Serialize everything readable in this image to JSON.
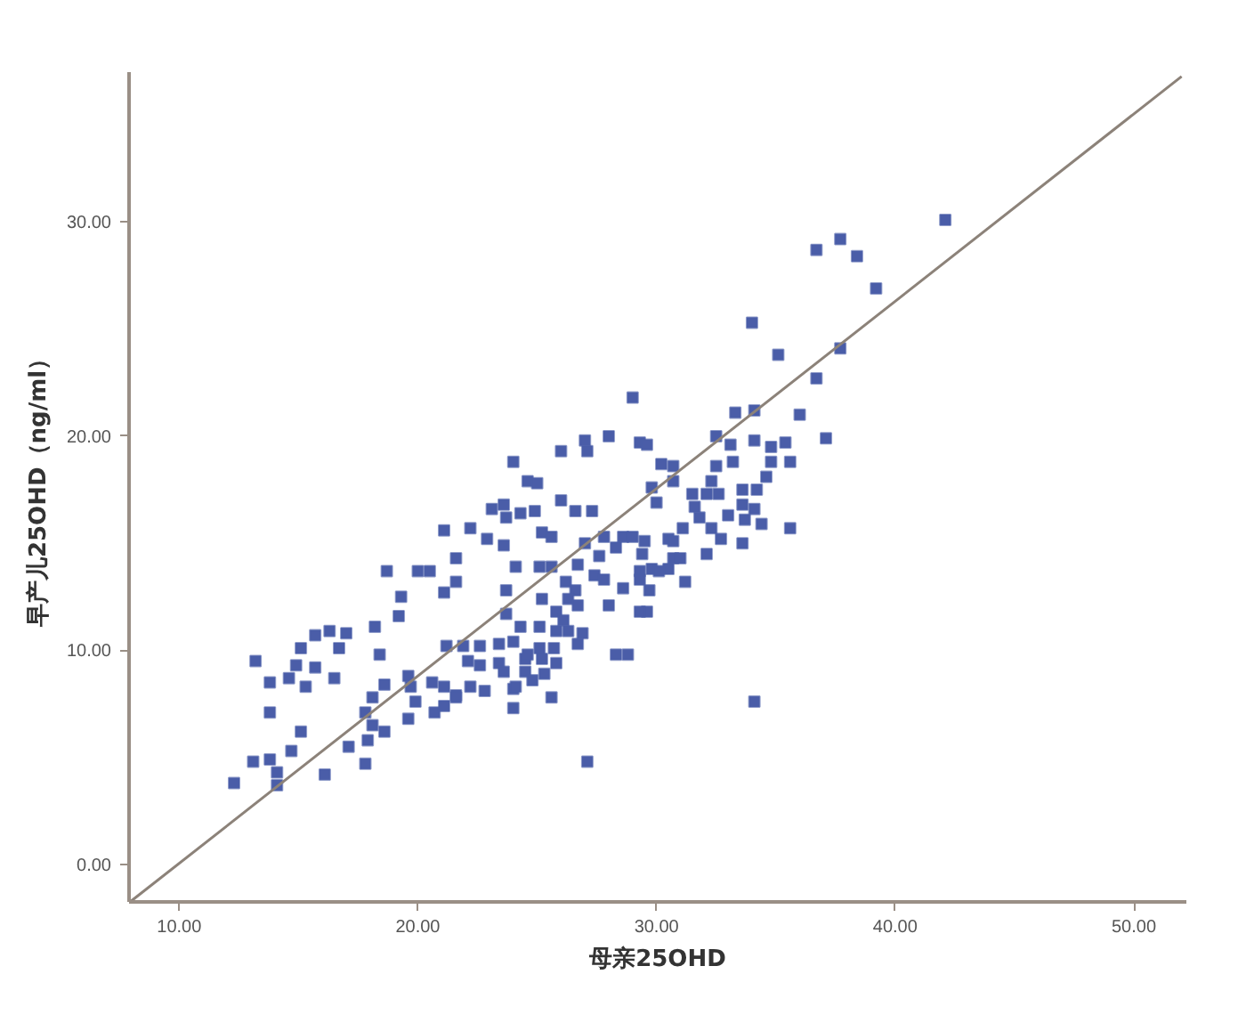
{
  "chart_data": {
    "type": "scatter",
    "xlabel": "母亲25OHD",
    "ylabel": "早产儿25OHD（ng/ml）",
    "xlim": [
      7.9,
      52.2
    ],
    "ylim": [
      -1.75,
      37.0
    ],
    "xticks": [
      {
        "value": 10,
        "label": "10.00"
      },
      {
        "value": 20,
        "label": "20.00"
      },
      {
        "value": 30,
        "label": "30.00"
      },
      {
        "value": 40,
        "label": "40.00"
      },
      {
        "value": 50,
        "label": "50.00"
      }
    ],
    "yticks": [
      {
        "value": 0,
        "label": "0.00"
      },
      {
        "value": 10,
        "label": "10.00"
      },
      {
        "value": 20,
        "label": "20.00"
      },
      {
        "value": 30,
        "label": "30.00"
      }
    ],
    "grid": false,
    "series": [
      {
        "marker": "square",
        "color": "#4a5da8",
        "x": [
          12.3,
          13.1,
          13.8,
          14.1,
          14.1,
          14.7,
          15.1,
          13.8,
          13.8,
          13.2,
          14.6,
          14.9,
          15.3,
          15.7,
          15.1,
          15.7,
          16.3,
          16.7,
          17.0,
          16.5,
          16.1,
          17.1,
          17.8,
          17.9,
          18.1,
          18.6,
          17.8,
          18.1,
          18.6,
          18.4,
          18.2,
          19.2,
          19.3,
          18.7,
          20.0,
          20.5,
          21.1,
          21.6,
          21.6,
          22.9,
          23.6,
          24.1,
          23.7,
          23.7,
          24.3,
          21.2,
          21.9,
          22.6,
          23.4,
          22.1,
          22.6,
          23.4,
          23.6,
          24.5,
          24.5,
          19.6,
          19.7,
          20.6,
          21.1,
          21.6,
          22.2,
          22.8,
          19.9,
          19.6,
          20.7,
          21.1,
          21.6,
          24.0,
          24.0,
          24.0,
          26.0,
          27.0,
          27.1,
          28.0,
          29.3,
          29.6,
          30.2,
          30.7,
          24.6,
          25.0,
          23.1,
          23.6,
          23.7,
          24.3,
          24.9,
          26.0,
          26.6,
          27.3,
          21.1,
          22.2,
          25.2,
          25.6,
          27.0,
          27.8,
          28.3,
          28.6,
          29.0,
          29.5,
          29.8,
          30.0,
          27.6,
          29.4,
          30.5,
          25.1,
          25.6,
          26.7,
          26.2,
          26.6,
          26.3,
          26.7,
          27.4,
          27.8,
          28.6,
          29.3,
          29.8,
          30.5,
          29.7,
          29.6,
          28.0,
          25.2,
          25.8,
          26.1,
          26.3,
          26.9,
          26.7,
          25.8,
          25.1,
          25.7,
          25.8,
          25.3,
          25.6,
          28.3,
          28.8,
          25.1,
          24.0,
          24.6,
          25.2,
          24.1,
          24.8,
          34.0,
          35.1,
          37.7,
          36.7,
          29.0,
          33.3,
          34.1,
          36.0,
          37.1,
          32.5,
          33.1,
          34.1,
          34.8,
          35.4,
          34.8,
          35.6,
          33.2,
          30.7,
          32.5,
          32.3,
          34.6,
          31.5,
          32.1,
          32.6,
          33.6,
          34.2,
          31.6,
          33.6,
          34.1,
          31.8,
          33.0,
          33.7,
          34.4,
          35.6,
          31.1,
          32.3,
          32.7,
          33.6,
          32.1,
          30.7,
          30.7,
          31.0,
          30.1,
          31.2,
          29.3,
          29.3,
          42.1,
          36.7,
          37.7,
          38.4,
          39.2,
          34.1,
          27.1
        ],
        "values": [
          3.8,
          4.8,
          4.9,
          4.3,
          3.7,
          5.3,
          6.2,
          7.1,
          8.5,
          9.5,
          8.7,
          9.3,
          8.3,
          9.2,
          10.1,
          10.7,
          10.9,
          10.1,
          10.8,
          8.7,
          4.2,
          5.5,
          4.7,
          5.8,
          6.5,
          6.2,
          7.1,
          7.8,
          8.4,
          9.8,
          11.1,
          11.6,
          12.5,
          13.7,
          13.7,
          13.7,
          12.7,
          13.2,
          14.3,
          15.2,
          14.9,
          13.9,
          12.8,
          11.7,
          11.1,
          10.2,
          10.2,
          10.2,
          10.3,
          9.5,
          9.3,
          9.4,
          9.0,
          9.6,
          9.0,
          8.8,
          8.3,
          8.5,
          8.3,
          7.9,
          8.3,
          8.1,
          7.6,
          6.8,
          7.1,
          7.4,
          7.8,
          8.2,
          7.3,
          18.8,
          19.3,
          19.8,
          19.3,
          20.0,
          19.7,
          19.6,
          18.7,
          17.9,
          17.9,
          17.8,
          16.6,
          16.8,
          16.2,
          16.4,
          16.5,
          17.0,
          16.5,
          16.5,
          15.6,
          15.7,
          15.5,
          15.3,
          15.0,
          15.3,
          14.8,
          15.3,
          15.3,
          15.1,
          17.6,
          16.9,
          14.4,
          14.5,
          15.2,
          13.9,
          13.9,
          14.0,
          13.2,
          12.8,
          12.4,
          12.1,
          13.5,
          13.3,
          12.9,
          13.7,
          13.8,
          13.8,
          12.8,
          11.8,
          12.1,
          12.4,
          11.8,
          11.4,
          10.9,
          10.8,
          10.3,
          10.9,
          10.1,
          10.1,
          9.4,
          8.9,
          7.8,
          9.8,
          9.8,
          11.1,
          10.4,
          9.8,
          9.6,
          8.3,
          8.6,
          25.3,
          23.8,
          24.1,
          22.7,
          21.8,
          21.1,
          21.2,
          21.0,
          19.9,
          20.0,
          19.6,
          19.8,
          19.5,
          19.7,
          18.8,
          18.8,
          18.8,
          18.6,
          18.6,
          17.9,
          18.1,
          17.3,
          17.3,
          17.3,
          17.5,
          17.5,
          16.7,
          16.8,
          16.6,
          16.2,
          16.3,
          16.1,
          15.9,
          15.7,
          15.7,
          15.7,
          15.2,
          15.0,
          14.5,
          15.1,
          14.3,
          14.3,
          13.7,
          13.2,
          13.3,
          11.8,
          30.1,
          28.7,
          29.2,
          28.4,
          26.9,
          7.6,
          4.8
        ]
      },
      {
        "type": "line",
        "marker": "none",
        "color": "#8c8279",
        "x": [
          8.0,
          52.0
        ],
        "values": [
          -1.7,
          36.8
        ]
      }
    ]
  }
}
